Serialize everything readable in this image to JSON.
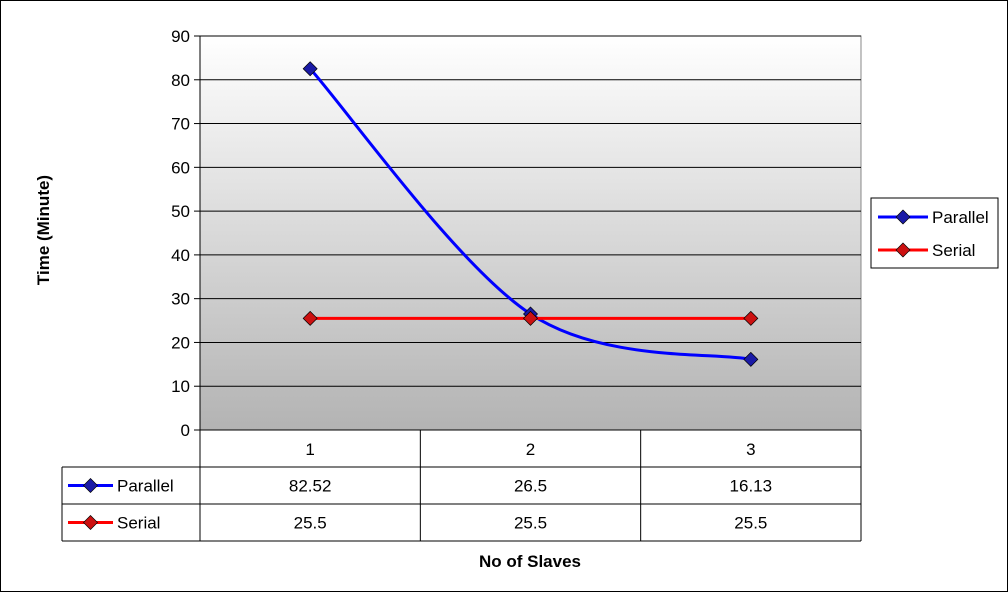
{
  "chart_data": {
    "type": "line",
    "title": "",
    "xlabel": "No of Slaves",
    "ylabel": "Time (Minute)",
    "categories": [
      "1",
      "2",
      "3"
    ],
    "ylim": [
      0,
      90
    ],
    "yticks": [
      "0",
      "10",
      "20",
      "30",
      "40",
      "50",
      "60",
      "70",
      "80",
      "90"
    ],
    "series": [
      {
        "name": "Parallel",
        "values": [
          82.52,
          26.5,
          16.13
        ],
        "labels": [
          "82.52",
          "26.5",
          "16.13"
        ],
        "color": "#0000ff",
        "marker_color": "#1a1aa6"
      },
      {
        "name": "Serial",
        "values": [
          25.5,
          25.5,
          25.5
        ],
        "labels": [
          "25.5",
          "25.5",
          "25.5"
        ],
        "color": "#ff0000",
        "marker_color": "#cc1111"
      }
    ],
    "grid": true,
    "legend": "right",
    "data_table": true
  }
}
